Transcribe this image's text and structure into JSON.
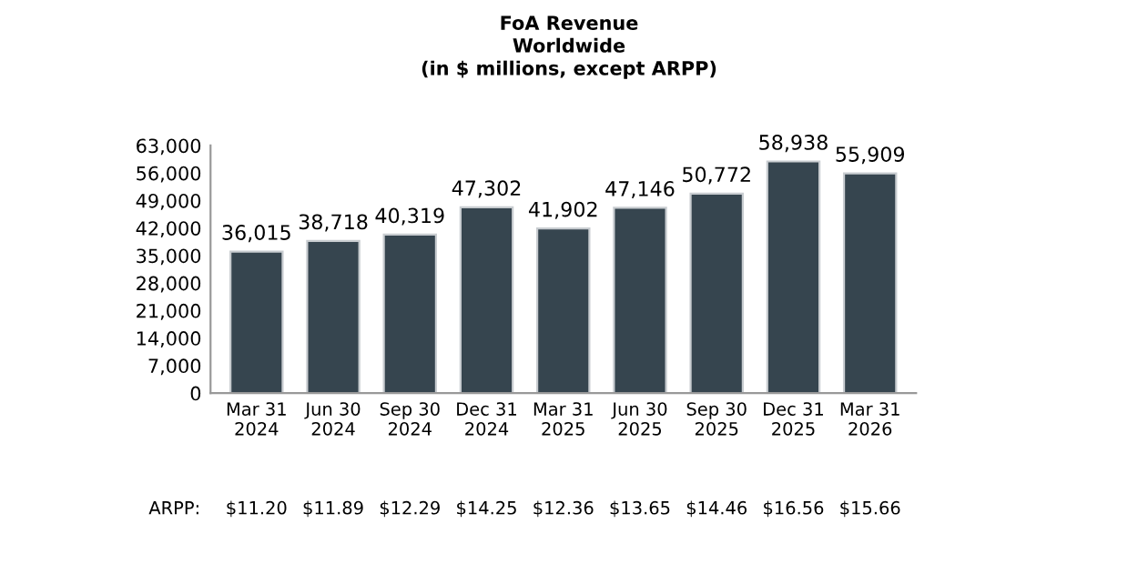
{
  "chart_data": {
    "type": "bar",
    "title": "FoA Revenue\nWorldwide\n(in $ millions, except ARPP)",
    "categories": [
      "Mar 31\n2024",
      "Jun 30\n2024",
      "Sep 30\n2024",
      "Dec 31\n2024",
      "Mar 31\n2025",
      "Jun 30\n2025",
      "Sep 30\n2025",
      "Dec 31\n2025",
      "Mar 31\n2026"
    ],
    "values": [
      36015,
      38718,
      40319,
      47302,
      41902,
      47146,
      50772,
      58938,
      55909
    ],
    "color": "#36454f",
    "ylim": [
      0,
      63000
    ],
    "yticks": [
      {
        "value": 0,
        "label": "0"
      },
      {
        "value": 7000,
        "label": "7,000"
      },
      {
        "value": 14000,
        "label": "14,000"
      },
      {
        "value": 21000,
        "label": "21,000"
      },
      {
        "value": 28000,
        "label": "28,000"
      },
      {
        "value": 35000,
        "label": "35,000"
      },
      {
        "value": 42000,
        "label": "42,000"
      },
      {
        "value": 49000,
        "label": "49,000"
      },
      {
        "value": 56000,
        "label": "56,000"
      },
      {
        "value": 63000,
        "label": "63,000"
      }
    ],
    "value_labels": [
      "36,015",
      "38,718",
      "40,319",
      "47,302",
      "41,902",
      "47,146",
      "50,772",
      "58,938",
      "55,909"
    ],
    "grid": false,
    "annotations": [
      "ARPP:",
      "$11.20",
      "$11.89",
      "$12.29",
      "$14.25",
      "$12.36",
      "$13.65",
      "$14.46",
      "$16.56",
      "$15.66"
    ]
  }
}
